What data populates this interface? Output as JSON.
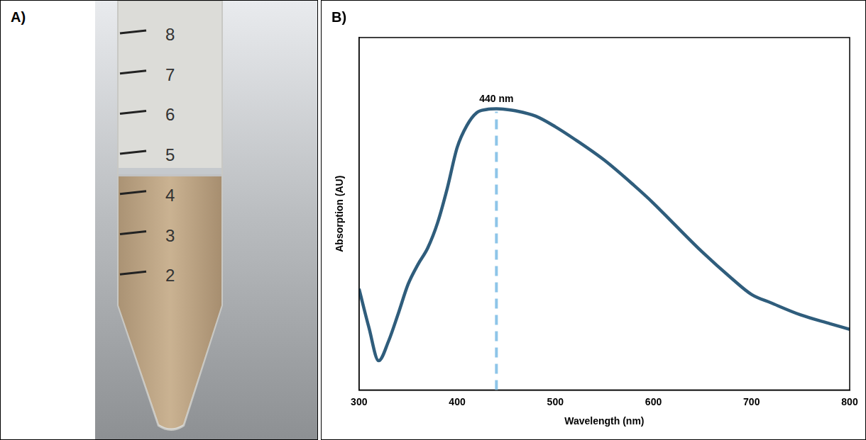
{
  "panel_a": {
    "label": "A)",
    "graduations": [
      8,
      7,
      6,
      5,
      4,
      3,
      2
    ]
  },
  "chart_data": {
    "panel_label": "B)",
    "type": "line",
    "x": [
      300,
      310,
      320,
      330,
      340,
      350,
      360,
      370,
      380,
      390,
      400,
      410,
      420,
      430,
      440,
      450,
      460,
      480,
      500,
      520,
      550,
      580,
      600,
      620,
      650,
      680,
      700,
      720,
      750,
      780,
      800
    ],
    "values": [
      0.287,
      0.178,
      0.083,
      0.138,
      0.217,
      0.3,
      0.356,
      0.403,
      0.474,
      0.573,
      0.688,
      0.751,
      0.787,
      0.796,
      0.798,
      0.796,
      0.792,
      0.777,
      0.747,
      0.711,
      0.652,
      0.581,
      0.53,
      0.474,
      0.391,
      0.316,
      0.271,
      0.247,
      0.213,
      0.188,
      0.172
    ],
    "color": "#2f5d7c",
    "xlim": [
      300,
      800
    ],
    "xticks": [
      300,
      400,
      500,
      600,
      700,
      800
    ],
    "ylim": [
      0,
      1
    ],
    "xlabel": "Wavelength (nm)",
    "ylabel": "Absorption (AU)",
    "grid": false,
    "tick_labels": "x",
    "annotations": [
      {
        "x": 440,
        "text": "440 nm",
        "color": "#8ec5e8",
        "line_style": "dashed"
      }
    ]
  }
}
